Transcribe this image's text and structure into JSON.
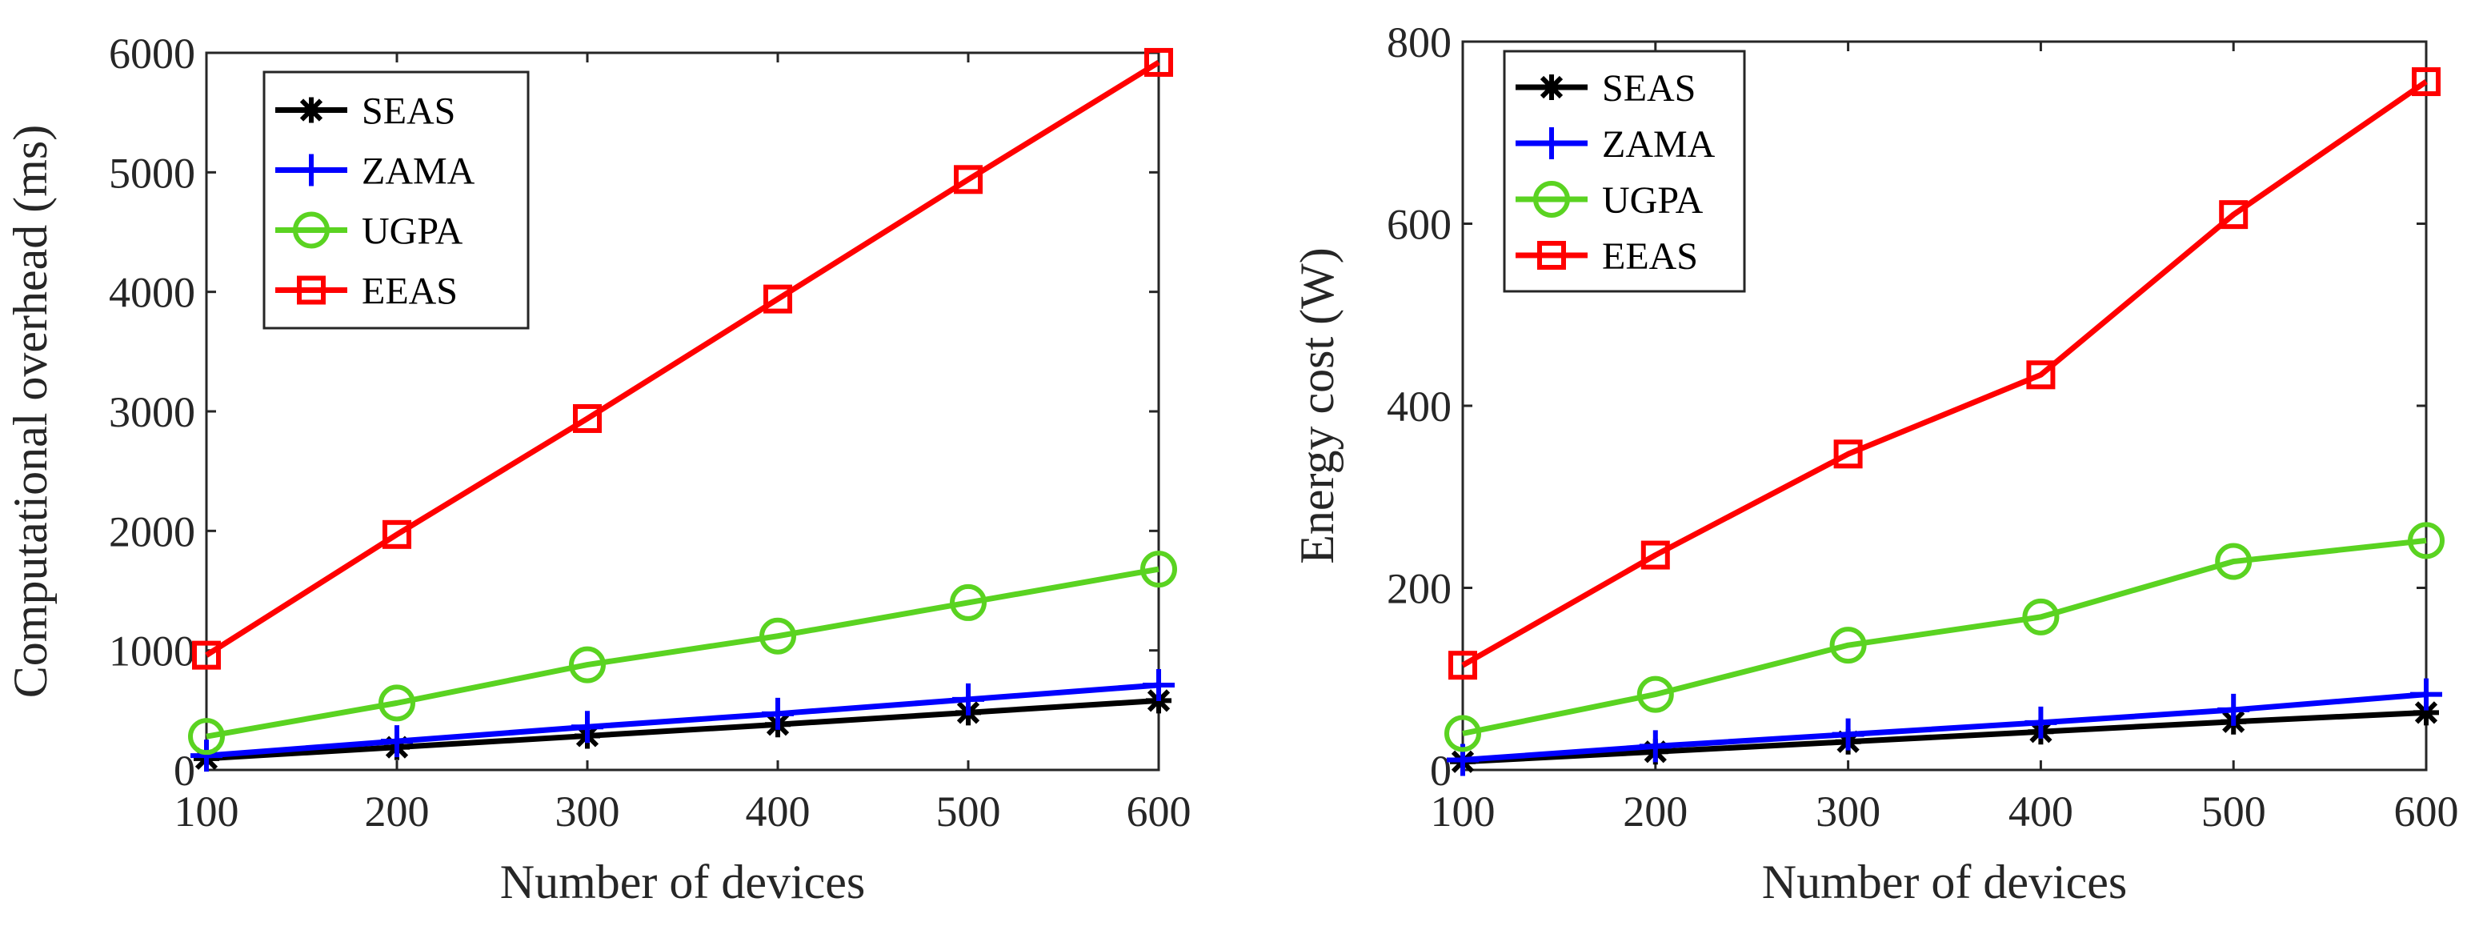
{
  "chart_data": [
    {
      "type": "line",
      "xlabel": "Number of devices",
      "ylabel": "Computational overhead (ms)",
      "x": [
        100,
        200,
        300,
        400,
        500,
        600
      ],
      "xlim": [
        100,
        600
      ],
      "ylim": [
        0,
        6000
      ],
      "xticks": [
        100,
        200,
        300,
        400,
        500,
        600
      ],
      "yticks": [
        0,
        1000,
        2000,
        3000,
        4000,
        5000,
        6000
      ],
      "grid": false,
      "legend_position": "top-left",
      "series": [
        {
          "name": "SEAS",
          "color": "#000000",
          "marker": "asterisk",
          "values": [
            95,
            190,
            285,
            380,
            480,
            580
          ]
        },
        {
          "name": "ZAMA",
          "color": "#0000ff",
          "marker": "plus",
          "values": [
            120,
            240,
            360,
            470,
            590,
            710
          ]
        },
        {
          "name": "UGPA",
          "color": "#5ad321",
          "marker": "circle",
          "values": [
            280,
            560,
            880,
            1120,
            1400,
            1680
          ]
        },
        {
          "name": "EEAS",
          "color": "#ff0000",
          "marker": "square",
          "values": [
            960,
            1970,
            2940,
            3940,
            4940,
            5920
          ]
        }
      ]
    },
    {
      "type": "line",
      "xlabel": "Number of devices",
      "ylabel": "Energy cost (W)",
      "x": [
        100,
        200,
        300,
        400,
        500,
        600
      ],
      "xlim": [
        100,
        600
      ],
      "ylim": [
        0,
        800
      ],
      "xticks": [
        100,
        200,
        300,
        400,
        500,
        600
      ],
      "yticks": [
        0,
        200,
        400,
        600,
        800
      ],
      "grid": false,
      "legend_position": "top-left",
      "series": [
        {
          "name": "SEAS",
          "color": "#000000",
          "marker": "asterisk",
          "values": [
            9,
            20,
            31,
            42,
            53,
            63
          ]
        },
        {
          "name": "ZAMA",
          "color": "#0000ff",
          "marker": "plus",
          "values": [
            11,
            26,
            39,
            52,
            66,
            83
          ]
        },
        {
          "name": "UGPA",
          "color": "#5ad321",
          "marker": "circle",
          "values": [
            40,
            83,
            137,
            168,
            229,
            252
          ]
        },
        {
          "name": "EEAS",
          "color": "#ff0000",
          "marker": "square",
          "values": [
            115,
            236,
            347,
            434,
            610,
            756
          ]
        }
      ]
    }
  ]
}
